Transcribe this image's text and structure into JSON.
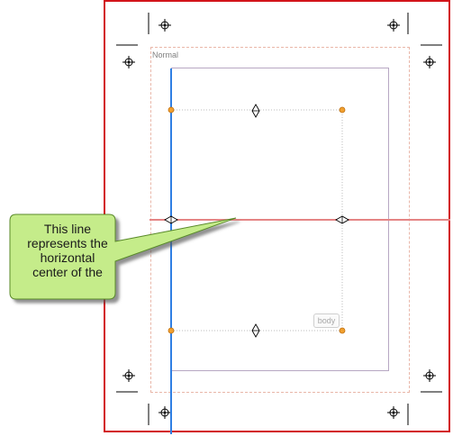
{
  "frame": {
    "label": "Normal"
  },
  "body_frame": {
    "label": "body"
  },
  "callout": {
    "lines": [
      "This line",
      "represents the",
      "horizontal",
      "center of the"
    ]
  },
  "colors": {
    "page_border": "#d2141a",
    "margin_guide": "#e9b7a9",
    "horizontal_center_line": "#e58585",
    "vertical_guide": "#2f7fe3",
    "handle_fill": "#f0a030",
    "callout_fill": "#c5ec8a",
    "callout_border": "#5a8a2a"
  },
  "icons": {
    "registration_mark": "crosshair-circle-icon",
    "resize_handle": "diamond-handle-icon",
    "corner_handle": "orange-dot-icon"
  }
}
